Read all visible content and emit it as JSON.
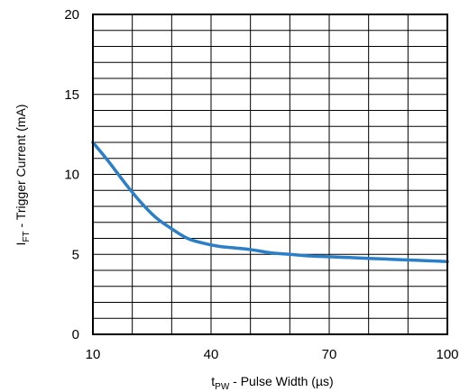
{
  "chart_data": {
    "type": "line",
    "xlabel": {
      "main": "t",
      "sub": "PW",
      "rest": " - Pulse Width (µs)"
    },
    "ylabel": {
      "main": "I",
      "sub": "FT",
      "rest": " - Trigger Current (mA)"
    },
    "xlim": [
      10,
      100
    ],
    "ylim": [
      0,
      20
    ],
    "x_ticks": [
      10,
      40,
      70,
      100
    ],
    "y_ticks": [
      0,
      5,
      10,
      15,
      20
    ],
    "x_minor_step": 10,
    "y_minor_step": 1,
    "grid": true,
    "series": [
      {
        "color": "#2a7fc6",
        "x": [
          10,
          14,
          18,
          22,
          26,
          30,
          34,
          38,
          42,
          46,
          50,
          55,
          60,
          65,
          70,
          75,
          80,
          85,
          90,
          95,
          100
        ],
        "y": [
          12.0,
          10.8,
          9.5,
          8.3,
          7.3,
          6.6,
          6.0,
          5.7,
          5.5,
          5.4,
          5.3,
          5.1,
          5.0,
          4.9,
          4.85,
          4.8,
          4.75,
          4.7,
          4.65,
          4.6,
          4.55
        ]
      }
    ]
  }
}
